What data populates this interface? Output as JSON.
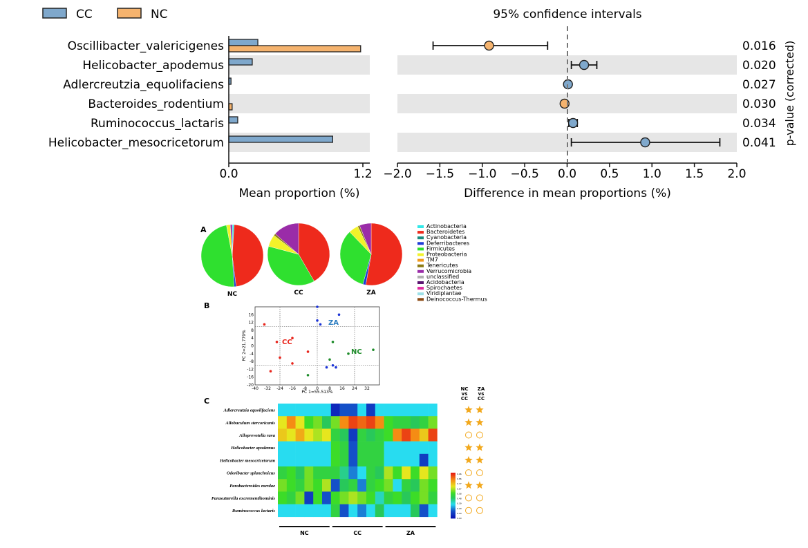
{
  "chart_data": [
    {
      "type": "bar",
      "panel": "extended error bar plot",
      "legend": [
        {
          "name": "CC",
          "color": "#7fa8cc"
        },
        {
          "name": "NC",
          "color": "#f5b36e"
        }
      ],
      "ci_title": "95% confidence intervals",
      "categories": [
        "Oscillibacter_valericigenes",
        "Helicobacter_apodemus",
        "Adlercreutzia_equolifaciens",
        "Bacteroides_rodentium",
        "Ruminococcus_lactaris",
        "Helicobacter_mesocricetorum"
      ],
      "series": [
        {
          "name": "CC",
          "values": [
            0.26,
            0.21,
            0.02,
            0.0,
            0.08,
            0.93
          ]
        },
        {
          "name": "NC",
          "values": [
            1.18,
            0.0,
            0.0,
            0.03,
            0.0,
            0.0
          ]
        }
      ],
      "xlabel_left": "Mean proportion (%)",
      "xlim_left": [
        0.0,
        1.2
      ],
      "xticks_left": [
        "0.0",
        "1.2"
      ],
      "difference": [
        {
          "mean": -0.92,
          "low": -1.58,
          "high": -0.23,
          "color": "#f5b36e"
        },
        {
          "mean": 0.2,
          "low": 0.05,
          "high": 0.35,
          "color": "#7fa8cc"
        },
        {
          "mean": 0.01,
          "low": 0.0,
          "high": 0.02,
          "color": "#7fa8cc"
        },
        {
          "mean": -0.03,
          "low": -0.04,
          "high": -0.02,
          "color": "#f5b36e"
        },
        {
          "mean": 0.07,
          "low": 0.02,
          "high": 0.12,
          "color": "#7fa8cc"
        },
        {
          "mean": 0.92,
          "low": 0.05,
          "high": 1.8,
          "color": "#7fa8cc"
        }
      ],
      "xlabel_right": "Difference in mean proportions (%)",
      "xlim_right": [
        -2.0,
        2.0
      ],
      "xticks_right": [
        "−2.0",
        "−1.5",
        "−1.0",
        "−0.5",
        "0.0",
        "0.5",
        "1.0",
        "1.5",
        "2.0"
      ],
      "pvalues": [
        "0.016",
        "0.020",
        "0.027",
        "0.030",
        "0.034",
        "0.041"
      ],
      "ylabel_right": "p-value (corrected)"
    },
    {
      "type": "pie",
      "panel_label": "A",
      "pies": [
        {
          "name": "NC",
          "values": [
            0.01,
            0.47,
            0.0,
            0.01,
            0.48,
            0.02,
            0.0,
            0.0,
            0.01,
            0.0,
            0.0,
            0.0,
            0.0,
            0.0
          ]
        },
        {
          "name": "CC",
          "values": [
            0.0,
            0.4,
            0.0,
            0.0,
            0.36,
            0.06,
            0.0,
            0.01,
            0.13,
            0.0,
            0.0,
            0.0,
            0.0,
            0.0
          ]
        },
        {
          "name": "ZA",
          "values": [
            0.0,
            0.52,
            0.0,
            0.015,
            0.33,
            0.05,
            0.0,
            0.01,
            0.06,
            0.0,
            0.0,
            0.0,
            0.0,
            0.0
          ]
        }
      ],
      "legend": [
        {
          "name": "Actinobacteria",
          "color": "#33e8e8"
        },
        {
          "name": "Bacteroidetes",
          "color": "#ee2a1c"
        },
        {
          "name": "Cyanobacteria",
          "color": "#1a8c7f"
        },
        {
          "name": "Deferribacteres",
          "color": "#1c3bd6"
        },
        {
          "name": "Firmicutes",
          "color": "#2fe02f"
        },
        {
          "name": "Proteobacteria",
          "color": "#f2f22a"
        },
        {
          "name": "TM7",
          "color": "#f29a1c"
        },
        {
          "name": "Tenericutes",
          "color": "#8c7a14"
        },
        {
          "name": "Verrucomicrobia",
          "color": "#9a2ca8"
        },
        {
          "name": "unclassified",
          "color": "#b0b0b0"
        },
        {
          "name": "Acidobacteria",
          "color": "#5a1470"
        },
        {
          "name": "Spirochaetes",
          "color": "#e02aa0"
        },
        {
          "name": "Viridiplantae",
          "color": "#9de0e8"
        },
        {
          "name": "Deinococcus-Thermus",
          "color": "#8c4a14"
        }
      ]
    },
    {
      "type": "scatter",
      "panel_label": "B",
      "xlabel": "PC 1=55.513%",
      "ylabel": "PC 2=21.779%",
      "xlim": [
        -40,
        40
      ],
      "ylim": [
        -20,
        20
      ],
      "xticks": [
        "-40",
        "-32",
        "-24",
        "-16",
        "-8",
        "0",
        "8",
        "16",
        "24",
        "32"
      ],
      "yticks": [
        "16",
        "12",
        "8",
        "4",
        "0",
        "-4",
        "-8",
        "-12",
        "-16",
        "-20"
      ],
      "groups": [
        {
          "name": "CC",
          "color": "#e8251c",
          "points": [
            [
              -34,
              11
            ],
            [
              -16,
              4
            ],
            [
              -26,
              2
            ],
            [
              -24,
              -6
            ],
            [
              -6,
              -3
            ],
            [
              -16,
              -9
            ],
            [
              -30,
              -13
            ]
          ]
        },
        {
          "name": "ZA",
          "color": "#1c34d6",
          "points": [
            [
              0,
              20
            ],
            [
              0,
              13
            ],
            [
              2,
              11
            ],
            [
              14,
              16
            ],
            [
              6,
              -11
            ],
            [
              12,
              -11
            ],
            [
              10,
              -10
            ]
          ]
        },
        {
          "name": "NC",
          "color": "#1e8c2a",
          "points": [
            [
              10,
              2
            ],
            [
              36,
              -2
            ],
            [
              20,
              -4
            ],
            [
              8,
              -7
            ],
            [
              -6,
              -15
            ]
          ]
        }
      ]
    },
    {
      "type": "heatmap",
      "panel_label": "C",
      "rows": [
        "Adlercreutzia equolifaciens",
        "Allobaculum stercoricanis",
        "Alloprevotella rava",
        "Helicobacter apodemus",
        "Helicobacter mesocricetorum",
        "Odoribacter splanchnicus",
        "Parabacteroides merdae",
        "Parasutterella excrementihominis",
        "Ruminococcus lactaris"
      ],
      "groups": [
        "NC",
        "CC",
        "ZA"
      ],
      "columns_per_group": 6,
      "values": [
        [
          0.3,
          0.3,
          0.3,
          0.3,
          0.3,
          0.3,
          0.05,
          0.15,
          0.15,
          0.3,
          0.1,
          0.3,
          0.3,
          0.3,
          0.3,
          0.3,
          0.3,
          0.3
        ],
        [
          0.7,
          0.85,
          0.7,
          0.55,
          0.6,
          0.45,
          0.6,
          0.85,
          0.95,
          0.9,
          0.95,
          0.85,
          0.55,
          0.5,
          0.5,
          0.45,
          0.5,
          0.6
        ],
        [
          0.75,
          0.7,
          0.8,
          0.7,
          0.65,
          0.7,
          0.5,
          0.45,
          0.1,
          0.5,
          0.45,
          0.5,
          0.55,
          0.85,
          0.95,
          0.85,
          0.75,
          0.95
        ],
        [
          0.3,
          0.3,
          0.3,
          0.3,
          0.3,
          0.3,
          0.55,
          0.5,
          0.15,
          0.5,
          0.5,
          0.5,
          0.3,
          0.3,
          0.3,
          0.3,
          0.3,
          0.3
        ],
        [
          0.3,
          0.3,
          0.3,
          0.3,
          0.3,
          0.3,
          0.55,
          0.5,
          0.15,
          0.5,
          0.5,
          0.5,
          0.3,
          0.3,
          0.3,
          0.3,
          0.1,
          0.3
        ],
        [
          0.5,
          0.55,
          0.45,
          0.6,
          0.5,
          0.5,
          0.5,
          0.4,
          0.2,
          0.3,
          0.5,
          0.45,
          0.65,
          0.55,
          0.7,
          0.55,
          0.7,
          0.6
        ],
        [
          0.6,
          0.55,
          0.5,
          0.6,
          0.55,
          0.65,
          0.15,
          0.45,
          0.5,
          0.2,
          0.5,
          0.55,
          0.6,
          0.3,
          0.5,
          0.45,
          0.6,
          0.55
        ],
        [
          0.55,
          0.5,
          0.6,
          0.1,
          0.55,
          0.15,
          0.55,
          0.6,
          0.65,
          0.6,
          0.55,
          0.35,
          0.5,
          0.55,
          0.45,
          0.55,
          0.6,
          0.5
        ],
        [
          0.3,
          0.3,
          0.3,
          0.3,
          0.3,
          0.3,
          0.5,
          0.15,
          0.3,
          0.2,
          0.3,
          0.45,
          0.3,
          0.3,
          0.3,
          0.45,
          0.15,
          0.3
        ]
      ],
      "comparisons": [
        "NC\nvs\nCC",
        "ZA\nvs\nCC"
      ],
      "significance": [
        [
          "star",
          "star"
        ],
        [
          "star",
          "star"
        ],
        [
          "circle",
          "circle"
        ],
        [
          "star",
          "star"
        ],
        [
          "star",
          "star"
        ],
        [
          "circle",
          "circle"
        ],
        [
          "star",
          "star"
        ],
        [
          "circle",
          "circle"
        ],
        [
          "circle",
          "circle"
        ]
      ],
      "scale_ticks": [
        "0.96",
        "0.86",
        "0.77",
        "0.67",
        "0.58",
        "0.48",
        "0.39",
        "0.29",
        "0.19",
        "0.10"
      ]
    }
  ]
}
